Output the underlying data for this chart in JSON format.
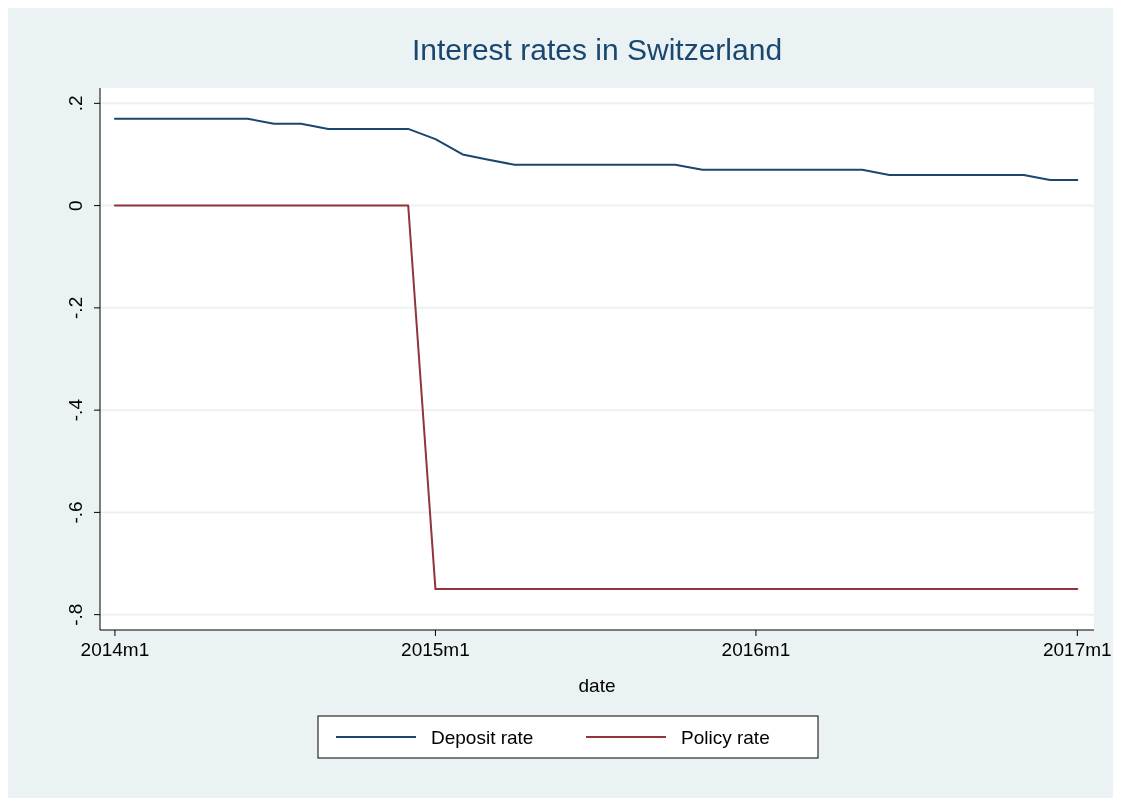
{
  "chart_data": {
    "type": "line",
    "title": "Interest rates in Switzerland",
    "xlabel": "date",
    "x": [
      "2014-01",
      "2014-02",
      "2014-03",
      "2014-04",
      "2014-05",
      "2014-06",
      "2014-07",
      "2014-08",
      "2014-09",
      "2014-10",
      "2014-11",
      "2014-12",
      "2015-01",
      "2015-02",
      "2015-03",
      "2015-04",
      "2015-05",
      "2015-06",
      "2015-07",
      "2015-08",
      "2015-09",
      "2015-10",
      "2015-11",
      "2015-12",
      "2016-01",
      "2016-02",
      "2016-03",
      "2016-04",
      "2016-05",
      "2016-06",
      "2016-07",
      "2016-08",
      "2016-09",
      "2016-10",
      "2016-11",
      "2016-12",
      "2017-01"
    ],
    "series": [
      {
        "name": "Deposit rate",
        "color": "#1a476f",
        "values": [
          0.17,
          0.17,
          0.17,
          0.17,
          0.17,
          0.17,
          0.16,
          0.16,
          0.15,
          0.15,
          0.15,
          0.15,
          0.13,
          0.1,
          0.09,
          0.08,
          0.08,
          0.08,
          0.08,
          0.08,
          0.08,
          0.08,
          0.07,
          0.07,
          0.07,
          0.07,
          0.07,
          0.07,
          0.07,
          0.06,
          0.06,
          0.06,
          0.06,
          0.06,
          0.06,
          0.05,
          0.05
        ]
      },
      {
        "name": "Policy rate",
        "color": "#90353b",
        "values": [
          0,
          0,
          0,
          0,
          0,
          0,
          0,
          0,
          0,
          0,
          0,
          0,
          -0.75,
          -0.75,
          -0.75,
          -0.75,
          -0.75,
          -0.75,
          -0.75,
          -0.75,
          -0.75,
          -0.75,
          -0.75,
          -0.75,
          -0.75,
          -0.75,
          -0.75,
          -0.75,
          -0.75,
          -0.75,
          -0.75,
          -0.75,
          -0.75,
          -0.75,
          -0.75,
          -0.75,
          -0.75
        ]
      }
    ],
    "xlim": [
      "2013-12-15",
      "2017-01-20"
    ],
    "xticks": [
      {
        "value": "2014-01",
        "label": "2014m1"
      },
      {
        "value": "2015-01",
        "label": "2015m1"
      },
      {
        "value": "2016-01",
        "label": "2016m1"
      },
      {
        "value": "2017-01",
        "label": "2017m1"
      }
    ],
    "ylim": [
      -0.83,
      0.23
    ],
    "yticks": [
      {
        "value": -0.8,
        "label": "-.8"
      },
      {
        "value": -0.6,
        "label": "-.6"
      },
      {
        "value": -0.4,
        "label": "-.4"
      },
      {
        "value": -0.2,
        "label": "-.2"
      },
      {
        "value": 0,
        "label": "0"
      },
      {
        "value": 0.2,
        "label": ".2"
      }
    ],
    "grid": "y",
    "legend": "bottom",
    "marker": "none",
    "line_style": "solid"
  }
}
